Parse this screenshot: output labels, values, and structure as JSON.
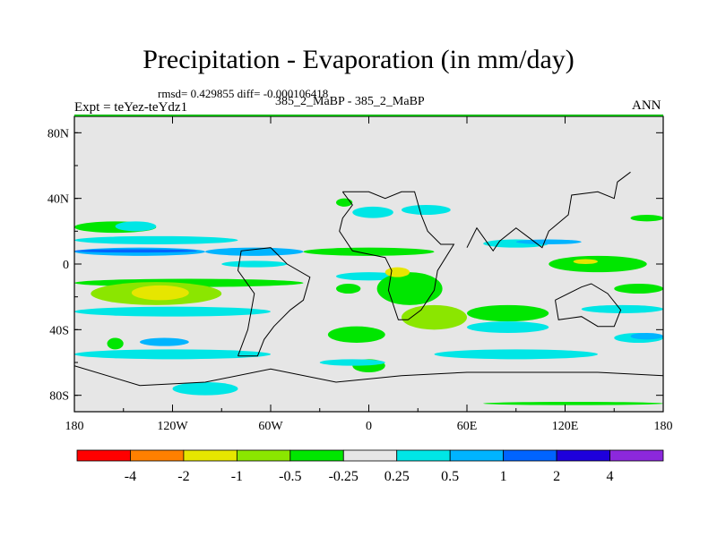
{
  "title": "Precipitation - Evaporation (in mm/day)",
  "stats": "rmsd= 0.429855 diff= -0.000106418",
  "subtitle": "385_2_MaBP - 385_2_MaBP",
  "expt": "Expt = teYez-teYdz1",
  "season": "ANN",
  "chart_data": {
    "type": "heatmap",
    "projection": "cylindrical equidistant",
    "xlim": [
      -180,
      180
    ],
    "ylim": [
      -90,
      90
    ],
    "x_ticks": [
      {
        "value": -180,
        "label": "180"
      },
      {
        "value": -120,
        "label": "120W"
      },
      {
        "value": -60,
        "label": "60W"
      },
      {
        "value": 0,
        "label": "0"
      },
      {
        "value": 60,
        "label": "60E"
      },
      {
        "value": 120,
        "label": "120E"
      },
      {
        "value": 180,
        "label": "180"
      }
    ],
    "y_ticks": [
      {
        "value": 80,
        "label": "80N"
      },
      {
        "value": 40,
        "label": "40N"
      },
      {
        "value": 0,
        "label": "0"
      },
      {
        "value": -40,
        "label": "40S"
      },
      {
        "value": -80,
        "label": "80S"
      }
    ],
    "colorbar": {
      "labels": [
        "-4",
        "-2",
        "-1",
        "-0.5",
        "-0.25",
        "0.25",
        "0.5",
        "1",
        "2",
        "4"
      ],
      "colors": [
        "#ff0000",
        "#ff8000",
        "#e6e600",
        "#8be600",
        "#00e600",
        "#e6e6e6",
        "#00e6e6",
        "#00b4ff",
        "#0064ff",
        "#1e00dc",
        "#8c28dc"
      ]
    },
    "background_color": "#e6e6e6",
    "regions": [
      {
        "color": "#00b4ff",
        "lon": [
          -180,
          -100
        ],
        "lat": [
          5,
          10
        ]
      },
      {
        "color": "#0064ff",
        "lon": [
          -180,
          -105
        ],
        "lat": [
          7,
          9
        ]
      },
      {
        "color": "#00e6e6",
        "lon": [
          -180,
          -80
        ],
        "lat": [
          12,
          17
        ]
      },
      {
        "color": "#00b4ff",
        "lon": [
          -100,
          -40
        ],
        "lat": [
          5,
          10
        ]
      },
      {
        "color": "#00e6e6",
        "lon": [
          -90,
          -50
        ],
        "lat": [
          -2,
          2
        ]
      },
      {
        "color": "#00e600",
        "lon": [
          -180,
          -130
        ],
        "lat": [
          19,
          26
        ]
      },
      {
        "color": "#00e6e6",
        "lon": [
          -155,
          -130
        ],
        "lat": [
          20,
          26
        ]
      },
      {
        "color": "#00e600",
        "lon": [
          -180,
          -40
        ],
        "lat": [
          -9,
          -14
        ]
      },
      {
        "color": "#8be600",
        "lon": [
          -170,
          -90
        ],
        "lat": [
          -11,
          -25
        ]
      },
      {
        "color": "#e6e600",
        "lon": [
          -145,
          -110
        ],
        "lat": [
          -13,
          -22
        ]
      },
      {
        "color": "#00e6e6",
        "lon": [
          -180,
          -60
        ],
        "lat": [
          -26,
          -32
        ]
      },
      {
        "color": "#00e6e6",
        "lon": [
          -180,
          -60
        ],
        "lat": [
          -52,
          -58
        ]
      },
      {
        "color": "#00e600",
        "lon": [
          -160,
          -150
        ],
        "lat": [
          -45,
          -52
        ]
      },
      {
        "color": "#00b4ff",
        "lon": [
          -140,
          -110
        ],
        "lat": [
          -45,
          -50
        ]
      },
      {
        "color": "#00e6e6",
        "lon": [
          -120,
          -80
        ],
        "lat": [
          -72,
          -80
        ]
      },
      {
        "color": "#00e600",
        "lon": [
          -40,
          40
        ],
        "lat": [
          5,
          10
        ]
      },
      {
        "color": "#00e6e6",
        "lon": [
          -20,
          20
        ],
        "lat": [
          -5,
          -10
        ]
      },
      {
        "color": "#00e600",
        "lon": [
          5,
          45
        ],
        "lat": [
          -5,
          -25
        ]
      },
      {
        "color": "#e6e600",
        "lon": [
          10,
          25
        ],
        "lat": [
          -2,
          -8
        ]
      },
      {
        "color": "#8be600",
        "lon": [
          20,
          60
        ],
        "lat": [
          -25,
          -40
        ]
      },
      {
        "color": "#00e600",
        "lon": [
          -25,
          10
        ],
        "lat": [
          -38,
          -48
        ]
      },
      {
        "color": "#00e600",
        "lon": [
          -10,
          10
        ],
        "lat": [
          -58,
          -66
        ]
      },
      {
        "color": "#00e600",
        "lon": [
          -20,
          -5
        ],
        "lat": [
          -12,
          -18
        ]
      },
      {
        "color": "#00e6e6",
        "lon": [
          -10,
          15
        ],
        "lat": [
          28,
          35
        ]
      },
      {
        "color": "#00e6e6",
        "lon": [
          70,
          110
        ],
        "lat": [
          10,
          15
        ]
      },
      {
        "color": "#00b4ff",
        "lon": [
          90,
          130
        ],
        "lat": [
          12,
          15
        ]
      },
      {
        "color": "#00e600",
        "lon": [
          110,
          170
        ],
        "lat": [
          -5,
          5
        ]
      },
      {
        "color": "#e6e600",
        "lon": [
          125,
          140
        ],
        "lat": [
          0,
          3
        ]
      },
      {
        "color": "#00e600",
        "lon": [
          150,
          180
        ],
        "lat": [
          -12,
          -18
        ]
      },
      {
        "color": "#00e6e6",
        "lon": [
          130,
          180
        ],
        "lat": [
          -25,
          -30
        ]
      },
      {
        "color": "#00e6e6",
        "lon": [
          150,
          180
        ],
        "lat": [
          -42,
          -48
        ]
      },
      {
        "color": "#00b4ff",
        "lon": [
          160,
          180
        ],
        "lat": [
          -42,
          -46
        ]
      },
      {
        "color": "#00e600",
        "lon": [
          60,
          110
        ],
        "lat": [
          -25,
          -35
        ]
      },
      {
        "color": "#00e6e6",
        "lon": [
          60,
          110
        ],
        "lat": [
          -35,
          -42
        ]
      },
      {
        "color": "#00e6e6",
        "lon": [
          40,
          140
        ],
        "lat": [
          -52,
          -58
        ]
      },
      {
        "color": "#00e600",
        "lon": [
          70,
          180
        ],
        "lat": [
          -84,
          -86
        ]
      },
      {
        "color": "#00e6e6",
        "lon": [
          -30,
          10
        ],
        "lat": [
          -58,
          -62
        ]
      },
      {
        "color": "#00e600",
        "lon": [
          -20,
          -10
        ],
        "lat": [
          35,
          40
        ]
      },
      {
        "color": "#00e6e6",
        "lon": [
          20,
          50
        ],
        "lat": [
          30,
          36
        ]
      },
      {
        "color": "#00e600",
        "lon": [
          160,
          180
        ],
        "lat": [
          26,
          30
        ]
      }
    ],
    "land_outlines": [
      [
        [
          -16,
          44
        ],
        [
          -10,
          36
        ],
        [
          -16,
          28
        ],
        [
          -18,
          20
        ],
        [
          -10,
          8
        ],
        [
          0,
          6
        ],
        [
          10,
          4
        ],
        [
          14,
          -4
        ],
        [
          12,
          -16
        ],
        [
          18,
          -34
        ],
        [
          24,
          -34
        ],
        [
          32,
          -28
        ],
        [
          40,
          -16
        ],
        [
          42,
          -4
        ],
        [
          52,
          12
        ],
        [
          44,
          12
        ],
        [
          36,
          20
        ],
        [
          32,
          30
        ],
        [
          28,
          44
        ],
        [
          20,
          44
        ],
        [
          10,
          40
        ],
        [
          0,
          44
        ],
        [
          -16,
          44
        ]
      ],
      [
        [
          -80,
          -56
        ],
        [
          -74,
          -40
        ],
        [
          -70,
          -18
        ],
        [
          -80,
          -4
        ],
        [
          -78,
          8
        ],
        [
          -60,
          10
        ],
        [
          -50,
          0
        ],
        [
          -36,
          -8
        ],
        [
          -40,
          -22
        ],
        [
          -48,
          -28
        ],
        [
          -58,
          -38
        ],
        [
          -64,
          -46
        ],
        [
          -68,
          -56
        ],
        [
          -80,
          -56
        ]
      ],
      [
        [
          60,
          10
        ],
        [
          66,
          22
        ],
        [
          76,
          8
        ],
        [
          80,
          14
        ],
        [
          90,
          22
        ],
        [
          98,
          16
        ],
        [
          106,
          10
        ],
        [
          110,
          20
        ],
        [
          122,
          30
        ],
        [
          124,
          42
        ],
        [
          140,
          44
        ],
        [
          150,
          40
        ],
        [
          152,
          50
        ],
        [
          160,
          56
        ]
      ],
      [
        [
          114,
          -22
        ],
        [
          116,
          -34
        ],
        [
          130,
          -32
        ],
        [
          140,
          -38
        ],
        [
          150,
          -38
        ],
        [
          154,
          -28
        ],
        [
          146,
          -18
        ],
        [
          136,
          -12
        ],
        [
          130,
          -14
        ],
        [
          114,
          -22
        ]
      ],
      [
        [
          -180,
          -62
        ],
        [
          -140,
          -74
        ],
        [
          -100,
          -72
        ],
        [
          -60,
          -64
        ],
        [
          -20,
          -72
        ],
        [
          20,
          -68
        ],
        [
          60,
          -66
        ],
        [
          100,
          -66
        ],
        [
          140,
          -66
        ],
        [
          180,
          -68
        ]
      ]
    ]
  }
}
